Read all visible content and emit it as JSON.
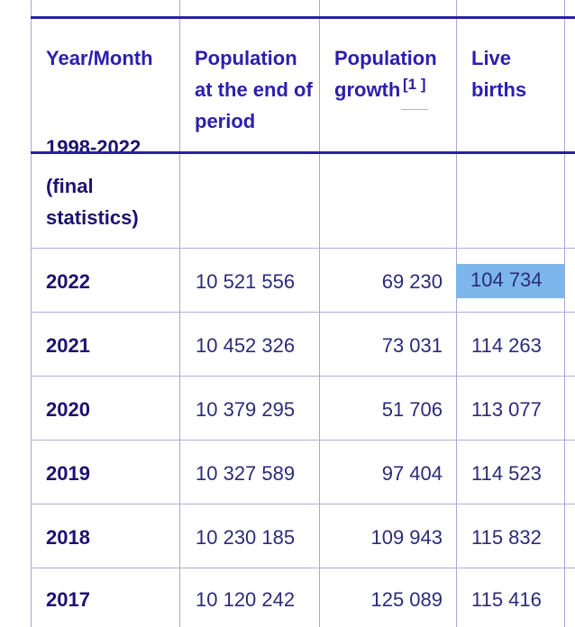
{
  "headers": {
    "year_month": "Year/Month",
    "population_end": "Population at the end of period",
    "population_growth": "Population growth",
    "growth_ref": "[1 ]",
    "live_births": "Live births"
  },
  "section": {
    "cut_label": "1998-2022",
    "label_line2": "(final",
    "label_line3": "statistics)"
  },
  "rows": [
    {
      "year": "2022",
      "population": "10 521 556",
      "growth": "69 230",
      "births": "104 734"
    },
    {
      "year": "2021",
      "population": "10 452 326",
      "growth": "73 031",
      "births": "114 263"
    },
    {
      "year": "2020",
      "population": "10 379 295",
      "growth": "51 706",
      "births": "113 077"
    },
    {
      "year": "2019",
      "population": "10 327 589",
      "growth": "97 404",
      "births": "114 523"
    },
    {
      "year": "2018",
      "population": "10 230 185",
      "growth": "109 943",
      "births": "115 832"
    },
    {
      "year": "2017",
      "population": "10 120 242",
      "growth": "125 089",
      "births": "115 416"
    }
  ],
  "colors": {
    "header_text": "#2c1fae",
    "highlight": "#7cb6ea",
    "border": "#a8a8d8"
  }
}
